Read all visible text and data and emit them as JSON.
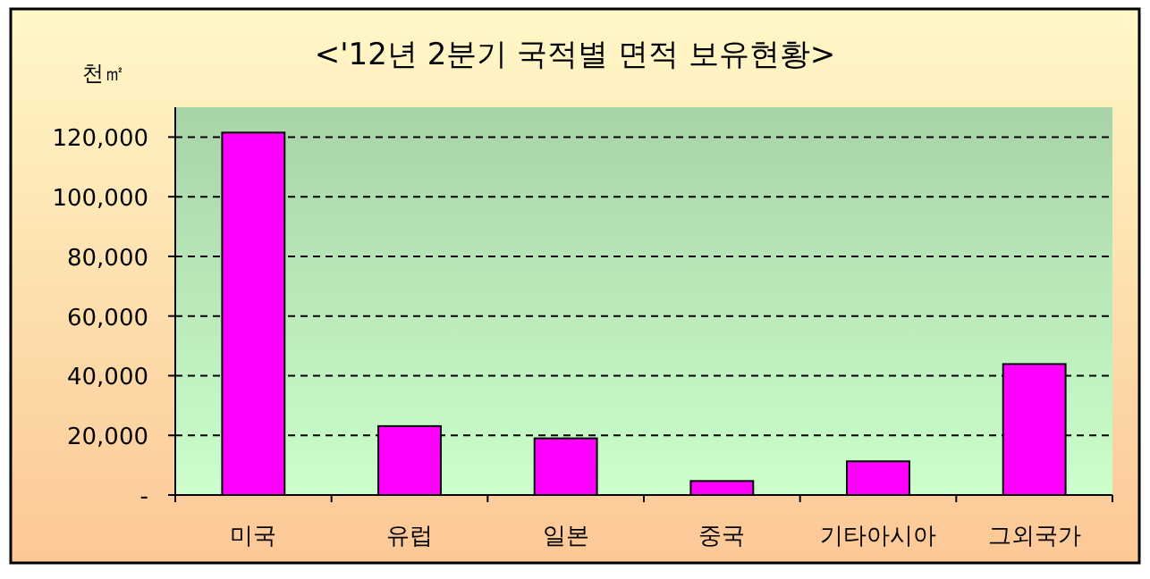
{
  "chart_data": {
    "type": "bar",
    "title": "<'12년 2분기 국적별 면적 보유현황>",
    "ylabel": "천㎡",
    "categories": [
      "미국",
      "유럽",
      "일본",
      "중국",
      "기타아시아",
      "그외국가"
    ],
    "values": [
      121500,
      23100,
      19000,
      4700,
      11300,
      43900
    ],
    "color": "#ff00ff",
    "ylim": [
      0,
      130000
    ],
    "yticks": [
      {
        "value": 0,
        "label": "-"
      },
      {
        "value": 20000,
        "label": "20,000"
      },
      {
        "value": 40000,
        "label": "40,000"
      },
      {
        "value": 60000,
        "label": "60,000"
      },
      {
        "value": 80000,
        "label": "80,000"
      },
      {
        "value": 100000,
        "label": "100,000"
      },
      {
        "value": 120000,
        "label": "120,000"
      }
    ],
    "grid": "y"
  }
}
